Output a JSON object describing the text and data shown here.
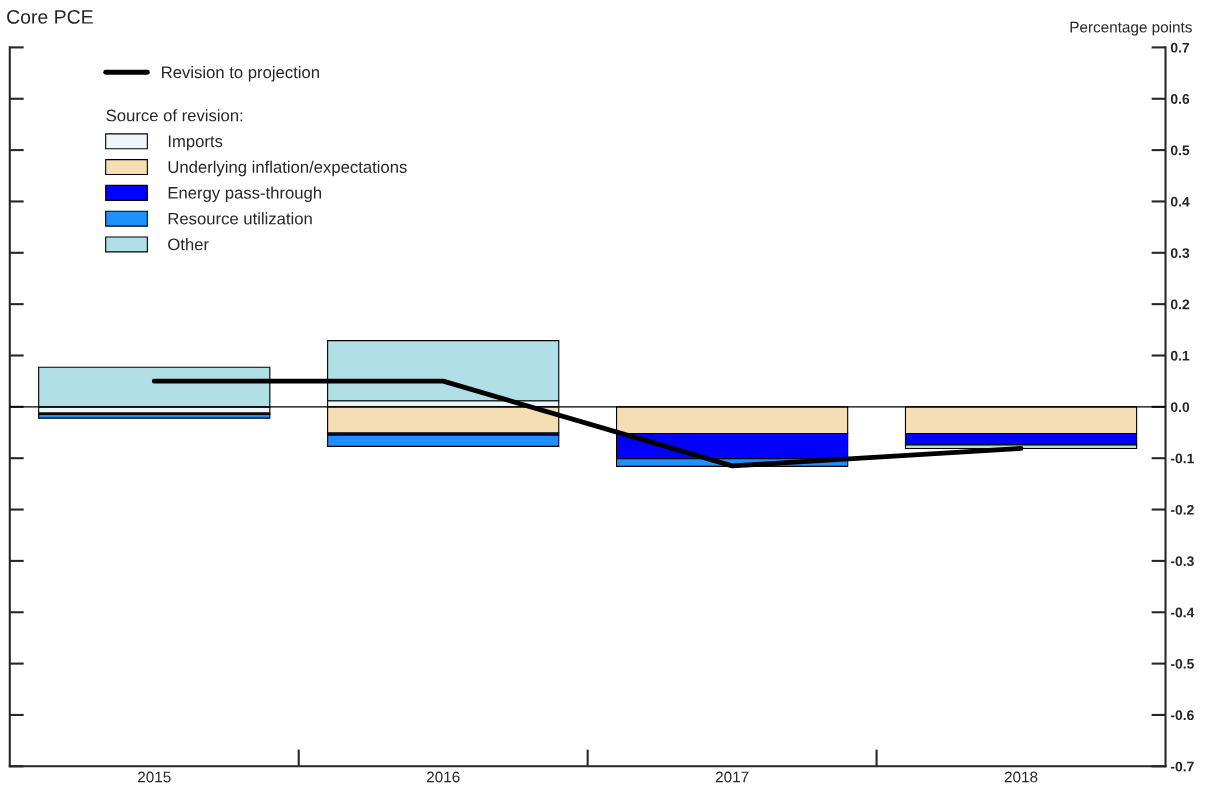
{
  "chart_data": {
    "type": "bar",
    "stacked": true,
    "title": "Core PCE",
    "ylabel": "Percentage points",
    "legend_title": "Source of revision:",
    "categories": [
      "2015",
      "2016",
      "2017",
      "2018"
    ],
    "series": [
      {
        "name": "Imports",
        "color": "#eef6fc",
        "values": [
          -0.012,
          0.012,
          null,
          null
        ]
      },
      {
        "name": "Underlying inflation/expectations",
        "color": "#f5deb3",
        "values": [
          null,
          -0.051,
          -0.052,
          -0.052
        ]
      },
      {
        "name": "Energy pass-through",
        "color": "#0000ff",
        "values": [
          -0.003,
          -0.004,
          -0.049,
          -0.022
        ]
      },
      {
        "name": "Resource utilization",
        "color": "#1e90ff",
        "values": [
          -0.007,
          -0.022,
          -0.015,
          null
        ]
      },
      {
        "name": "Other",
        "color": "#b0e0e6",
        "values": [
          0.077,
          0.117,
          null,
          -0.007
        ]
      },
      {
        "name": "Revision to projection",
        "type": "line",
        "color": "#000000",
        "values": [
          0.05,
          0.05,
          -0.115,
          -0.081
        ]
      }
    ],
    "ylim": [
      -0.7,
      0.7
    ],
    "yticks": [
      -0.7,
      -0.6,
      -0.5,
      -0.4,
      -0.3,
      -0.2,
      -0.1,
      {
        "value": 0,
        "label": "0.0"
      },
      0.1,
      0.2,
      0.3,
      0.4,
      0.5,
      0.6,
      0.7
    ],
    "ref_lines": [
      {
        "axis": "y",
        "value": 0,
        "color": "#000000"
      }
    ],
    "grid": false,
    "legend": "top left"
  }
}
